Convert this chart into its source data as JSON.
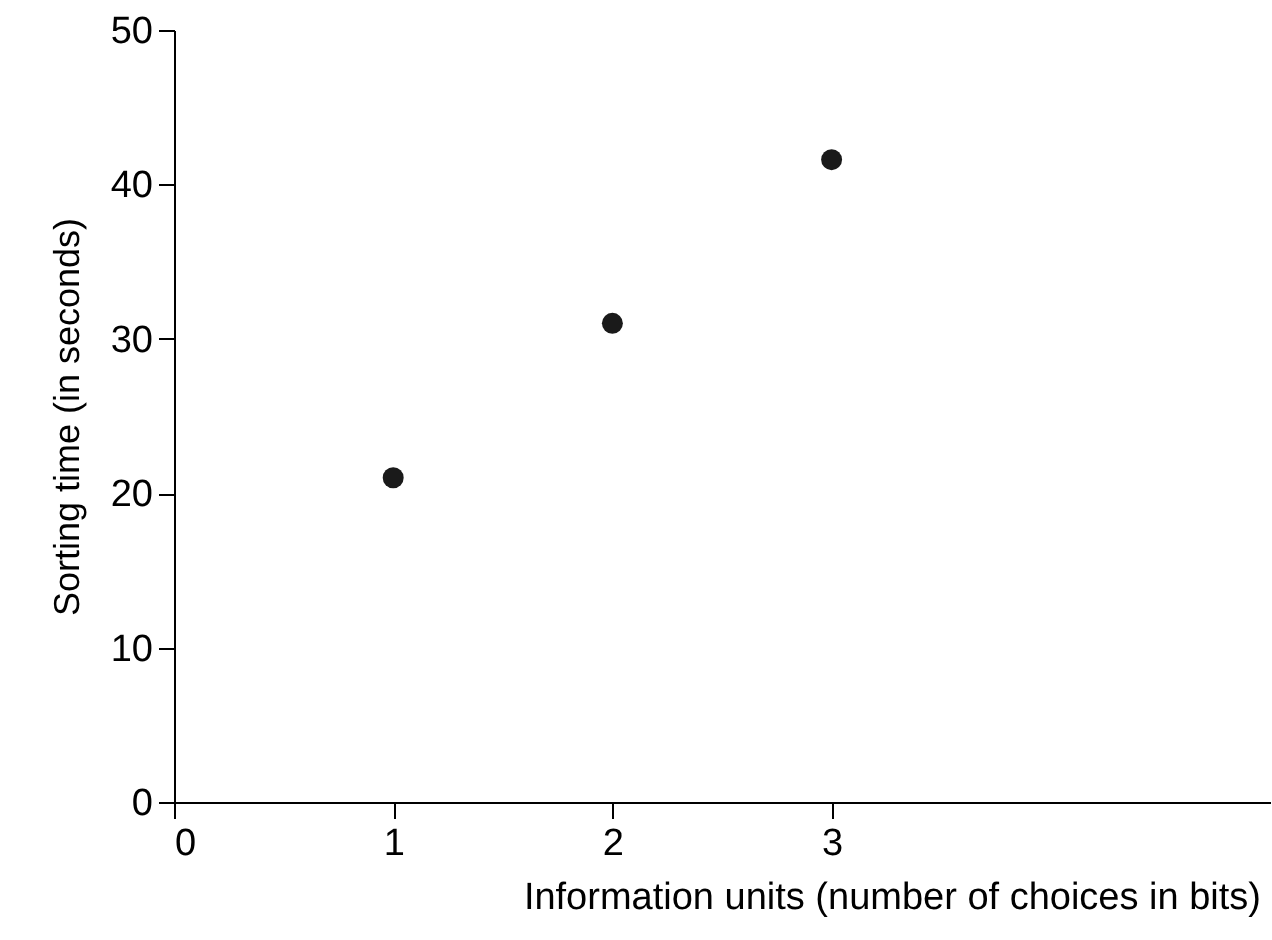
{
  "chart_data": {
    "type": "scatter",
    "xlabel": "Information units (number of choices in bits)",
    "ylabel": "Sorting time (in seconds)",
    "x": [
      1,
      2,
      3
    ],
    "series": [
      {
        "color": "#1a1a1a",
        "values": [
          21,
          31,
          41.6
        ]
      }
    ],
    "xlim": [
      0,
      5
    ],
    "xticks": [
      0,
      1,
      2,
      3
    ],
    "ylim": [
      0,
      50
    ],
    "yticks": [
      0,
      10,
      20,
      30,
      40,
      50
    ],
    "grid": false,
    "marker": "circle"
  }
}
